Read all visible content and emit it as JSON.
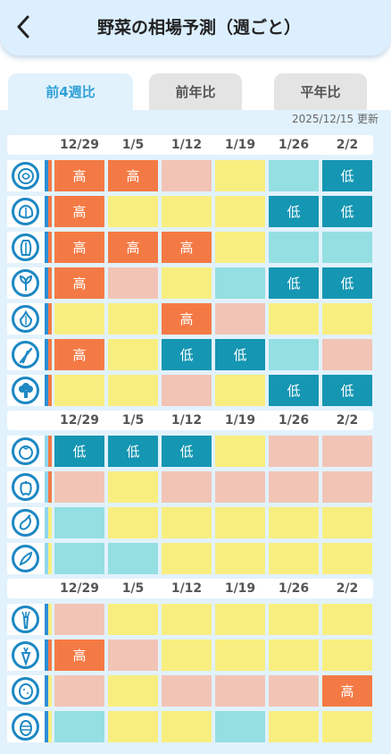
{
  "header": {
    "title": "野菜の相場予測（週ごと）",
    "back_icon": "chevron-left-icon"
  },
  "tabs": [
    {
      "label": "前4週比",
      "active": true
    },
    {
      "label": "前年比",
      "active": false
    },
    {
      "label": "平年比",
      "active": false
    }
  ],
  "updated": "2025/12/15 更新",
  "colors": {
    "high": "#f47a45",
    "slightly_high": "#f2c4b6",
    "normal": "#f8ee80",
    "slightly_low": "#94dfe2",
    "low": "#1596b2"
  },
  "level_labels": {
    "high": "高",
    "low": "低"
  },
  "groups": [
    {
      "dates": [
        "12/29",
        "1/5",
        "1/12",
        "1/19",
        "1/26",
        "2/2"
      ],
      "rows": [
        {
          "icon": "cabbage-icon",
          "strip": [
            "#2b8fd6",
            "#f47a45"
          ],
          "cells": [
            "high",
            "high",
            "slightly_high",
            "normal",
            "slightly_low",
            "low"
          ]
        },
        {
          "icon": "lettuce-icon",
          "strip": [
            "#2b8fd6",
            "#f47a45"
          ],
          "cells": [
            "high",
            "normal",
            "normal",
            "normal",
            "low",
            "low"
          ]
        },
        {
          "icon": "napa-cabbage-icon",
          "strip": [
            "#2b8fd6",
            "#f47a45"
          ],
          "cells": [
            "high",
            "high",
            "high",
            "normal",
            "slightly_low",
            "slightly_low"
          ]
        },
        {
          "icon": "spinach-icon",
          "strip": [
            "#2b8fd6",
            "#f47a45"
          ],
          "cells": [
            "high",
            "slightly_high",
            "normal",
            "slightly_low",
            "low",
            "low"
          ]
        },
        {
          "icon": "onion-icon",
          "strip": [
            "#2b8fd6",
            "#f47a45"
          ],
          "cells": [
            "normal",
            "normal",
            "high",
            "slightly_high",
            "normal",
            "normal"
          ]
        },
        {
          "icon": "green-onion-icon",
          "strip": [
            "#2b8fd6",
            "#f47a45"
          ],
          "cells": [
            "high",
            "normal",
            "low",
            "low",
            "slightly_low",
            "slightly_high"
          ]
        },
        {
          "icon": "broccoli-icon",
          "strip": [
            "#2b8fd6",
            "#f47a45"
          ],
          "cells": [
            "normal",
            "normal",
            "slightly_high",
            "normal",
            "low",
            "low"
          ]
        }
      ]
    },
    {
      "dates": [
        "12/29",
        "1/5",
        "1/12",
        "1/19",
        "1/26",
        "2/2"
      ],
      "rows": [
        {
          "icon": "tomato-icon",
          "strip": [
            "#8fd6ee",
            "#f47a45"
          ],
          "cells": [
            "low",
            "low",
            "low",
            "normal",
            "slightly_high",
            "slightly_high"
          ]
        },
        {
          "icon": "bell-pepper-icon",
          "strip": [
            "#8fd6ee",
            "#f47a45"
          ],
          "cells": [
            "slightly_high",
            "normal",
            "slightly_high",
            "slightly_high",
            "slightly_high",
            "slightly_high"
          ]
        },
        {
          "icon": "eggplant-icon",
          "strip": [
            "#8fd6ee",
            "#f8ee80"
          ],
          "cells": [
            "slightly_low",
            "normal",
            "normal",
            "normal",
            "normal",
            "normal"
          ]
        },
        {
          "icon": "cucumber-icon",
          "strip": [
            "#8fd6ee",
            "#f8ee80"
          ],
          "cells": [
            "slightly_low",
            "slightly_low",
            "normal",
            "normal",
            "normal",
            "normal"
          ]
        }
      ]
    },
    {
      "dates": [
        "12/29",
        "1/5",
        "1/12",
        "1/19",
        "1/26",
        "2/2"
      ],
      "rows": [
        {
          "icon": "daikon-icon",
          "strip": [
            "#2b8fd6",
            "#f8ee80"
          ],
          "cells": [
            "slightly_high",
            "normal",
            "normal",
            "normal",
            "normal",
            "normal"
          ]
        },
        {
          "icon": "carrot-icon",
          "strip": [
            "#2b8fd6",
            "#f47a45"
          ],
          "cells": [
            "high",
            "slightly_high",
            "normal",
            "normal",
            "normal",
            "normal"
          ]
        },
        {
          "icon": "potato-icon",
          "strip": [
            "#2b8fd6",
            "#f8ee80"
          ],
          "cells": [
            "slightly_high",
            "normal",
            "slightly_high",
            "slightly_high",
            "slightly_high",
            "high"
          ]
        },
        {
          "icon": "taro-icon",
          "strip": [
            "#2b8fd6",
            "#f8ee80"
          ],
          "cells": [
            "slightly_low",
            "normal",
            "normal",
            "slightly_low",
            "normal",
            "normal"
          ]
        }
      ]
    }
  ]
}
